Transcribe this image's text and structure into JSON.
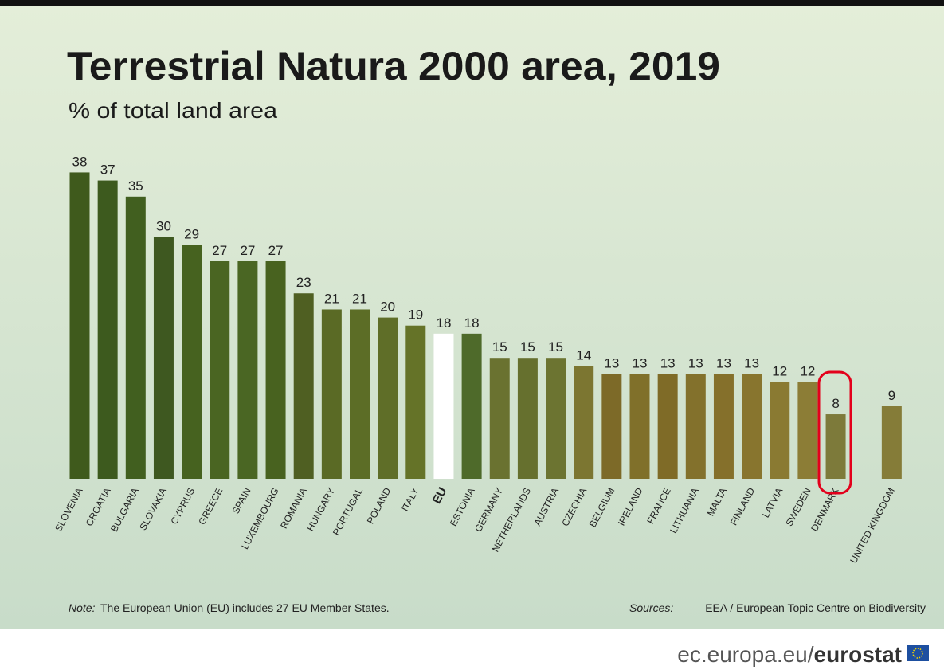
{
  "chart_data": {
    "type": "bar",
    "title": "Terrestrial Natura 2000 area, 2019",
    "subtitle": "% of total land area",
    "categories": [
      "SLOVENIA",
      "CROATIA",
      "BULGARIA",
      "SLOVAKIA",
      "CYPRUS",
      "GREECE",
      "SPAIN",
      "LUXEMBOURG",
      "ROMANIA",
      "HUNGARY",
      "PORTUGAL",
      "POLAND",
      "ITALY",
      "EU",
      "ESTONIA",
      "GERMANY",
      "NETHERLANDS",
      "AUSTRIA",
      "CZECHIA",
      "BELGIUM",
      "IRELAND",
      "FRANCE",
      "LITHUANIA",
      "MALTA",
      "FINLAND",
      "LATVIA",
      "SWEDEN",
      "DENMARK",
      "UNITED KINGDOM"
    ],
    "values": [
      38,
      37,
      35,
      30,
      29,
      27,
      27,
      27,
      23,
      21,
      21,
      20,
      19,
      18,
      18,
      15,
      15,
      15,
      14,
      13,
      13,
      13,
      13,
      13,
      13,
      12,
      12,
      8,
      9
    ],
    "colors": [
      "#3f5a1c",
      "#3d5a1e",
      "#415f1f",
      "#3e5820",
      "#46621f",
      "#4a6522",
      "#4a6623",
      "#48621f",
      "#4f5f22",
      "#5a6a25",
      "#5c6d26",
      "#5f6e28",
      "#657328",
      "#ffffff",
      "#4e6a2a",
      "#6a7230",
      "#66702e",
      "#6c7431",
      "#7c7631",
      "#7d6a28",
      "#80702a",
      "#7f6b27",
      "#83712c",
      "#85702b",
      "#88752e",
      "#8a7a32",
      "#8c7d36",
      "#7d7a3a",
      "#857c38"
    ],
    "note_label": "Note:",
    "note": "The European Union (EU) includes 27 EU Member States.",
    "sources_label": "Sources:",
    "sources": "EEA / European Topic Centre on Biodiversity",
    "footer_site": "ec.europa.eu/",
    "footer_brand": "eurostat"
  }
}
